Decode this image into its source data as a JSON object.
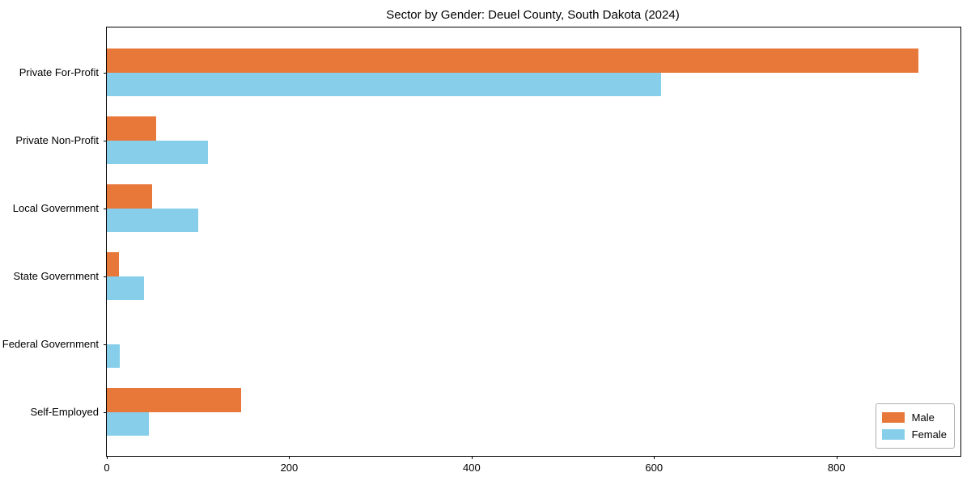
{
  "figure": {
    "title": "Sector by Gender: Deuel County, South Dakota (2024)"
  },
  "chart_data": {
    "type": "bar",
    "orientation": "horizontal",
    "title": "Sector by Gender: Deuel County, South Dakota (2024)",
    "categories": [
      "Private For-Profit",
      "Private Non-Profit",
      "Local Government",
      "State Government",
      "Federal Government",
      "Self-Employed"
    ],
    "series": [
      {
        "name": "Male",
        "color": "#e8773a",
        "values": [
          890,
          54,
          50,
          13,
          0,
          147
        ]
      },
      {
        "name": "Female",
        "color": "#87ceeb",
        "values": [
          608,
          111,
          100,
          41,
          14,
          46
        ]
      }
    ],
    "xlabel": "",
    "ylabel": "",
    "x_ticks": [
      0,
      200,
      400,
      600,
      800
    ],
    "xlim": [
      0,
      936
    ],
    "grid": false,
    "legend": {
      "position": "lower right",
      "entries": [
        "Male",
        "Female"
      ]
    },
    "colors": {
      "spine": "#000000",
      "text": "#000000",
      "legend_border": "#b0b0b0",
      "background": "#ffffff"
    }
  }
}
